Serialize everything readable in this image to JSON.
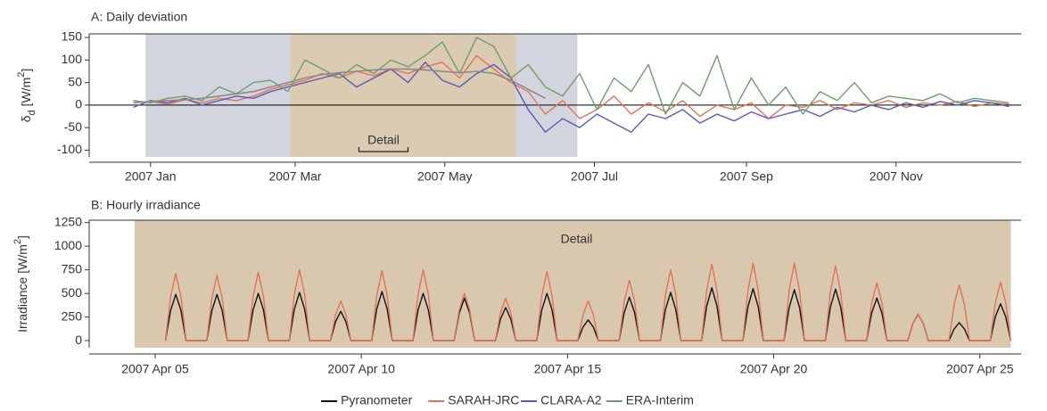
{
  "chart_data": [
    {
      "type": "line",
      "title": "A: Daily deviation",
      "ylabel_parts": [
        "δ",
        "d",
        " [W/m",
        "2",
        "]"
      ],
      "x": [
        -6,
        1,
        8,
        15,
        22,
        29,
        36,
        43,
        50,
        57,
        64,
        71,
        78,
        85,
        92,
        99,
        106,
        113,
        120,
        127,
        134,
        141,
        148,
        155,
        162,
        169,
        176,
        183,
        190,
        197,
        204,
        211,
        218,
        225,
        232,
        239,
        246,
        253,
        260,
        267,
        274,
        281,
        288,
        295,
        302,
        309,
        316,
        323,
        330,
        337,
        344,
        351
      ],
      "xlim": [
        -24,
        356
      ],
      "xticks": [
        {
          "value": 1,
          "label": "2007 Jan"
        },
        {
          "value": 60,
          "label": "2007 Mar"
        },
        {
          "value": 121,
          "label": "2007 May"
        },
        {
          "value": 182,
          "label": "2007 Jul"
        },
        {
          "value": 244,
          "label": "2007 Sep"
        },
        {
          "value": 305,
          "label": "2007 Nov"
        }
      ],
      "ylim": [
        -115,
        158
      ],
      "yticks": [
        -100,
        -50,
        0,
        50,
        100,
        150
      ],
      "reference_line": 0,
      "shaded_regions": [
        {
          "from": -1,
          "to": 175,
          "color": "#d3d5de"
        },
        {
          "from": 58,
          "to": 150,
          "color": "#dccbb3"
        }
      ],
      "annotations": [
        {
          "text": "Detail",
          "from": 86,
          "to": 106
        }
      ],
      "series": [
        {
          "name": "SARAH-JRC",
          "color": "#e0745a",
          "values": [
            5,
            8,
            2,
            12,
            5,
            15,
            10,
            20,
            35,
            45,
            55,
            70,
            60,
            75,
            65,
            80,
            70,
            85,
            95,
            60,
            110,
            80,
            50,
            30,
            -20,
            10,
            -30,
            -10,
            20,
            -20,
            5,
            -15,
            10,
            -25,
            0,
            -10,
            5,
            -30,
            0,
            -5,
            10,
            -10,
            5,
            0,
            10,
            -5,
            5,
            0,
            8,
            -3,
            5,
            2
          ]
        },
        {
          "name": "CLARA-A2",
          "color": "#5a5ab4",
          "values": [
            -5,
            10,
            5,
            15,
            0,
            10,
            20,
            15,
            30,
            40,
            50,
            60,
            70,
            40,
            60,
            80,
            50,
            95,
            55,
            40,
            70,
            90,
            60,
            -10,
            -60,
            -30,
            -50,
            -20,
            -40,
            -60,
            -20,
            -30,
            -10,
            -40,
            -20,
            -35,
            -15,
            -30,
            -20,
            -10,
            -25,
            -5,
            -15,
            0,
            -10,
            5,
            -5,
            8,
            0,
            10,
            5,
            -3
          ]
        },
        {
          "name": "ERA-Interim",
          "color": "#6e9e6a",
          "values": [
            10,
            5,
            15,
            20,
            10,
            40,
            25,
            50,
            55,
            30,
            100,
            80,
            60,
            90,
            70,
            100,
            85,
            110,
            140,
            70,
            150,
            130,
            60,
            90,
            40,
            20,
            70,
            -10,
            60,
            30,
            90,
            -20,
            50,
            20,
            110,
            -10,
            60,
            0,
            40,
            -20,
            30,
            10,
            50,
            5,
            20,
            15,
            10,
            25,
            5,
            15,
            10,
            5
          ]
        }
      ],
      "trend": {
        "color": "#8a8a8a",
        "values": [
          5,
          8,
          10,
          12,
          15,
          20,
          25,
          30,
          40,
          50,
          60,
          68,
          72,
          75,
          78,
          80,
          80,
          78,
          75,
          72,
          75,
          70,
          55,
          35,
          15,
          null,
          null,
          null,
          null,
          null,
          null,
          null,
          null,
          null,
          null,
          null,
          null,
          null,
          null,
          null,
          null,
          null,
          null,
          null,
          null,
          null,
          null,
          null,
          null,
          null,
          null,
          null
        ]
      }
    },
    {
      "type": "line",
      "title": "B: Hourly irradiance",
      "ylabel_parts": [
        "Irradiance [W/m",
        "2",
        "]"
      ],
      "x": [
        5.25,
        5.375,
        5.5,
        5.625,
        5.75,
        6.25,
        6.375,
        6.5,
        6.625,
        6.75,
        7.25,
        7.375,
        7.5,
        7.625,
        7.75,
        8.25,
        8.375,
        8.5,
        8.625,
        8.75,
        9.25,
        9.375,
        9.5,
        9.625,
        9.75,
        10.25,
        10.375,
        10.5,
        10.625,
        10.75,
        11.25,
        11.375,
        11.5,
        11.625,
        11.75,
        12.25,
        12.375,
        12.5,
        12.625,
        12.75,
        13.25,
        13.375,
        13.5,
        13.625,
        13.75,
        14.25,
        14.375,
        14.5,
        14.625,
        14.75,
        15.25,
        15.375,
        15.5,
        15.625,
        15.75,
        16.25,
        16.375,
        16.5,
        16.625,
        16.75,
        17.25,
        17.375,
        17.5,
        17.625,
        17.75,
        18.25,
        18.375,
        18.5,
        18.625,
        18.75,
        19.25,
        19.375,
        19.5,
        19.625,
        19.75,
        20.25,
        20.375,
        20.5,
        20.625,
        20.75,
        21.25,
        21.375,
        21.5,
        21.625,
        21.75,
        22.25,
        22.375,
        22.5,
        22.625,
        22.75,
        23.25,
        23.375,
        23.5,
        23.625,
        23.75,
        24.25,
        24.375,
        24.5,
        24.625,
        24.75,
        25.25,
        25.375,
        25.5,
        25.625,
        25.75
      ],
      "xlim": [
        3.4,
        26
      ],
      "xticks": [
        {
          "value": 5,
          "label": "2007 Apr 05"
        },
        {
          "value": 10,
          "label": "2007 Apr 10"
        },
        {
          "value": 15,
          "label": "2007 Apr 15"
        },
        {
          "value": 20,
          "label": "2007 Apr 20"
        },
        {
          "value": 25,
          "label": "2007 Apr 25"
        }
      ],
      "ylim": [
        -75,
        1275
      ],
      "yticks": [
        0,
        250,
        500,
        750,
        1000,
        1250
      ],
      "shaded_regions": [
        {
          "from": 4.5,
          "to": 25.75,
          "color": "#d9c7ae"
        }
      ],
      "annotations": [
        {
          "text": "Detail"
        }
      ],
      "series": [
        {
          "name": "Pyranometer",
          "color": "#111111",
          "values": [
            0,
            319,
            490,
            319,
            0,
            0,
            319,
            490,
            319,
            0,
            0,
            325,
            500,
            325,
            0,
            0,
            332,
            510,
            332,
            0,
            0,
            202,
            310,
            202,
            0,
            0,
            338,
            520,
            338,
            0,
            0,
            325,
            500,
            325,
            0,
            0,
            293,
            450,
            293,
            0,
            0,
            228,
            350,
            228,
            0,
            0,
            325,
            500,
            325,
            0,
            0,
            143,
            220,
            143,
            0,
            0,
            299,
            460,
            299,
            0,
            0,
            332,
            510,
            332,
            0,
            0,
            364,
            560,
            364,
            0,
            0,
            358,
            550,
            358,
            0,
            0,
            351,
            540,
            351,
            0,
            0,
            354,
            545,
            354,
            0,
            0,
            293,
            450,
            293,
            0,
            0,
            182,
            280,
            182,
            0,
            0,
            124,
            190,
            124,
            0,
            0,
            254,
            390,
            254,
            0
          ]
        },
        {
          "color": "#e0745a",
          "values": [
            0,
            462,
            710,
            462,
            0,
            0,
            449,
            690,
            449,
            0,
            0,
            468,
            720,
            468,
            0,
            0,
            488,
            750,
            488,
            0,
            0,
            273,
            420,
            273,
            0,
            0,
            481,
            740,
            481,
            0,
            0,
            488,
            750,
            488,
            0,
            0,
            325,
            500,
            325,
            0,
            0,
            293,
            450,
            293,
            0,
            0,
            475,
            730,
            475,
            0,
            0,
            273,
            420,
            273,
            0,
            0,
            416,
            640,
            416,
            0,
            0,
            488,
            750,
            488,
            0,
            0,
            527,
            810,
            527,
            0,
            0,
            533,
            820,
            533,
            0,
            0,
            533,
            820,
            533,
            0,
            0,
            514,
            790,
            514,
            0,
            0,
            397,
            610,
            397,
            0,
            0,
            182,
            280,
            182,
            0,
            0,
            384,
            590,
            384,
            0,
            0,
            403,
            620,
            403,
            0
          ]
        }
      ]
    }
  ]
}
